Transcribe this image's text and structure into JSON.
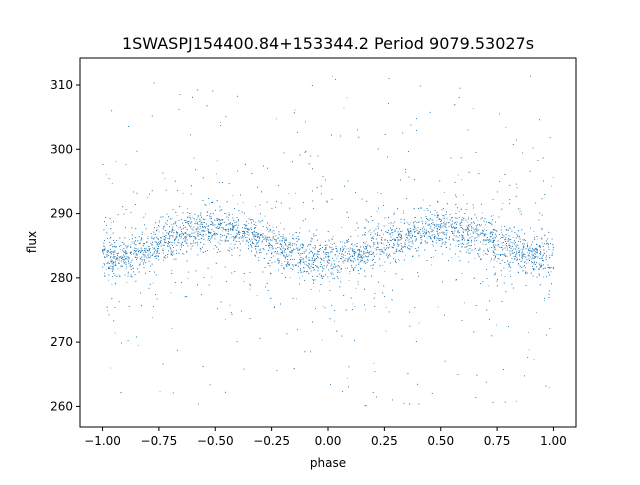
{
  "chart_data": {
    "type": "scatter",
    "title": "1SWASPJ154400.84+153344.2 Period 9079.53027s",
    "xlabel": "phase",
    "ylabel": "flux",
    "xlim": [
      -1.1,
      1.1
    ],
    "ylim": [
      256.8,
      314.2
    ],
    "xticks": [
      -1.0,
      -0.75,
      -0.5,
      -0.25,
      0.0,
      0.25,
      0.5,
      0.75,
      1.0
    ],
    "xtick_labels": [
      "−1.00",
      "−0.75",
      "−0.50",
      "−0.25",
      "0.00",
      "0.25",
      "0.50",
      "0.75",
      "1.00"
    ],
    "yticks": [
      260,
      270,
      280,
      290,
      300,
      310
    ],
    "ytick_labels": [
      "260",
      "270",
      "280",
      "290",
      "300",
      "310"
    ],
    "grid": false,
    "legend": "none",
    "point_color": "#1f77b4",
    "series": [
      {
        "model": "periodic light curve, folded; mean flux plus sinusoid with one cycle per unit phase",
        "x_range": [
          -1.0,
          1.0
        ],
        "point_count_approx": 9000,
        "mean_flux": 285.3,
        "amplitude": 2.3,
        "peak_phase": [
          -0.5,
          0.5
        ],
        "trough_phase": [
          -1.0,
          0.0,
          1.0
        ],
        "core_scatter_sigma": 1.6,
        "outlier_flux_range": [
          259.5,
          311.5
        ]
      }
    ]
  }
}
